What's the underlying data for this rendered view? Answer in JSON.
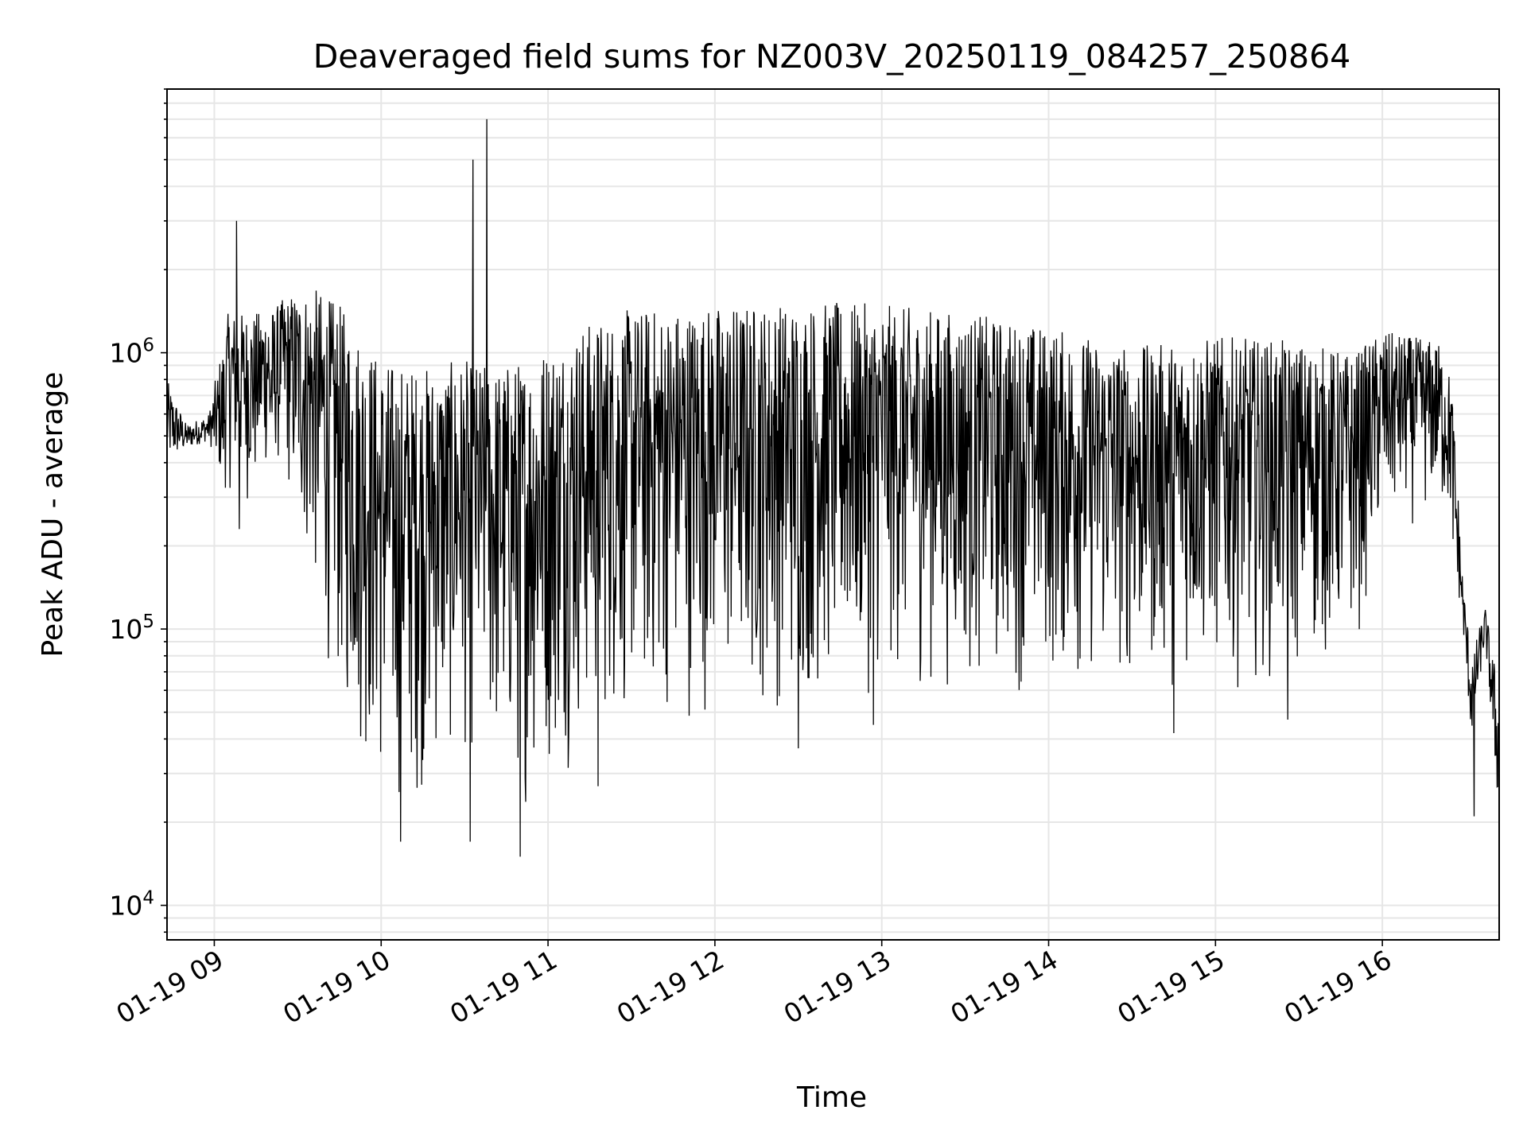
{
  "chart_data": {
    "type": "line",
    "title": "Deaveraged field sums for NZ003V_20250119_084257_250864",
    "xlabel": "Time",
    "ylabel": "Peak ADU - average",
    "x_axis_kind": "time",
    "xlim": [
      "2025-01-19 08:43",
      "2025-01-19 16:42"
    ],
    "x_ticks": [
      {
        "label": "01-19 09",
        "time": "2025-01-19 09:00"
      },
      {
        "label": "01-19 10",
        "time": "2025-01-19 10:00"
      },
      {
        "label": "01-19 11",
        "time": "2025-01-19 11:00"
      },
      {
        "label": "01-19 12",
        "time": "2025-01-19 12:00"
      },
      {
        "label": "01-19 13",
        "time": "2025-01-19 13:00"
      },
      {
        "label": "01-19 14",
        "time": "2025-01-19 14:00"
      },
      {
        "label": "01-19 15",
        "time": "2025-01-19 15:00"
      },
      {
        "label": "01-19 16",
        "time": "2025-01-19 16:00"
      }
    ],
    "y_scale": "log",
    "ylim": [
      7500,
      9000000
    ],
    "y_ticks": [
      {
        "base": "10",
        "exp": "4",
        "value": 10000
      },
      {
        "base": "10",
        "exp": "5",
        "value": 100000
      },
      {
        "base": "10",
        "exp": "6",
        "value": 1000000
      }
    ],
    "grid": true,
    "series_color": "#000000",
    "grid_color": "#e6e6e6",
    "envelope": {
      "description_units": "time, low, high (Peak ADU - average)",
      "points": [
        [
          "08:43",
          400000,
          800000
        ],
        [
          "08:50",
          450000,
          550000
        ],
        [
          "08:58",
          480000,
          600000
        ],
        [
          "09:05",
          300000,
          1400000
        ],
        [
          "09:15",
          250000,
          1400000
        ],
        [
          "09:22",
          450000,
          1500000
        ],
        [
          "09:30",
          200000,
          1700000
        ],
        [
          "09:37",
          100000,
          1700000
        ],
        [
          "09:45",
          45000,
          1500000
        ],
        [
          "09:52",
          30000,
          1200000
        ],
        [
          "10:00",
          20000,
          950000
        ],
        [
          "10:10",
          20000,
          900000
        ],
        [
          "10:20",
          25000,
          900000
        ],
        [
          "10:30",
          30000,
          950000
        ],
        [
          "10:40",
          25000,
          900000
        ],
        [
          "10:50",
          20000,
          950000
        ],
        [
          "11:00",
          25000,
          1100000
        ],
        [
          "11:15",
          35000,
          1300000
        ],
        [
          "11:30",
          40000,
          1450000
        ],
        [
          "12:00",
          45000,
          1500000
        ],
        [
          "12:30",
          45000,
          1550000
        ],
        [
          "13:00",
          55000,
          1500000
        ],
        [
          "13:30",
          55000,
          1400000
        ],
        [
          "14:00",
          55000,
          1250000
        ],
        [
          "14:30",
          55000,
          1050000
        ],
        [
          "15:00",
          60000,
          1150000
        ],
        [
          "15:30",
          60000,
          1100000
        ],
        [
          "15:50",
          75000,
          1000000
        ],
        [
          "16:00",
          200000,
          1200000
        ],
        [
          "16:20",
          250000,
          1100000
        ],
        [
          "16:25",
          200000,
          800000
        ],
        [
          "16:29",
          100000,
          150000
        ],
        [
          "16:32",
          40000,
          80000
        ],
        [
          "16:37",
          90000,
          120000
        ],
        [
          "16:42",
          20000,
          60000
        ]
      ]
    },
    "spikes": [
      {
        "time": "09:08",
        "value": 3000000
      },
      {
        "time": "09:09",
        "value": 230000
      },
      {
        "time": "10:07",
        "value": 17000
      },
      {
        "time": "10:32",
        "value": 17000
      },
      {
        "time": "10:33",
        "value": 5000000
      },
      {
        "time": "10:38",
        "value": 7000000
      },
      {
        "time": "10:50",
        "value": 15000
      },
      {
        "time": "11:18",
        "value": 27000
      },
      {
        "time": "12:30",
        "value": 37000
      },
      {
        "time": "12:57",
        "value": 45000
      },
      {
        "time": "14:45",
        "value": 42000
      },
      {
        "time": "15:26",
        "value": 47000
      },
      {
        "time": "16:33",
        "value": 21000
      }
    ]
  }
}
